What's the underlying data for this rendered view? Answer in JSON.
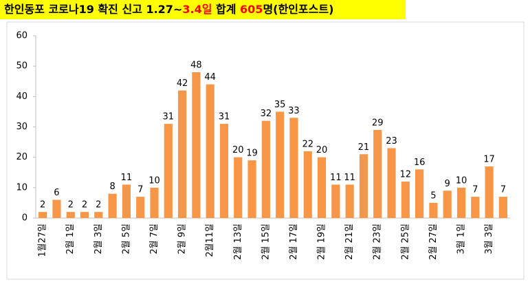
{
  "chart_data": {
    "type": "bar",
    "title": [
      "한인동포 코로나19 확진 신고 1.27~",
      "3.4일",
      " 합계 ",
      "605",
      "명(한인포스트)"
    ],
    "categories": [
      "1월27일",
      null,
      "2월 1일",
      null,
      "2월 3일",
      null,
      "2월 5일",
      null,
      "2월 7일",
      null,
      "2월 9일",
      null,
      "2월11일",
      null,
      "2월 13일",
      null,
      "2월 15일",
      null,
      "2월 17일",
      null,
      "2월 19일",
      null,
      "2월 21일",
      null,
      "2월 23일",
      null,
      "2월 25일",
      null,
      "2월 27일",
      null,
      "3월 1일",
      null,
      "3월 3일",
      null
    ],
    "values": [
      2,
      6,
      2,
      2,
      2,
      8,
      11,
      7,
      10,
      31,
      42,
      48,
      44,
      31,
      20,
      19,
      32,
      35,
      33,
      22,
      20,
      11,
      11,
      21,
      29,
      23,
      12,
      16,
      5,
      9,
      10,
      7,
      17,
      7
    ],
    "color": "#f79646",
    "ylim": [
      0,
      60
    ],
    "yticks": [
      0,
      10,
      20,
      30,
      40,
      50,
      60
    ],
    "grid": false
  }
}
